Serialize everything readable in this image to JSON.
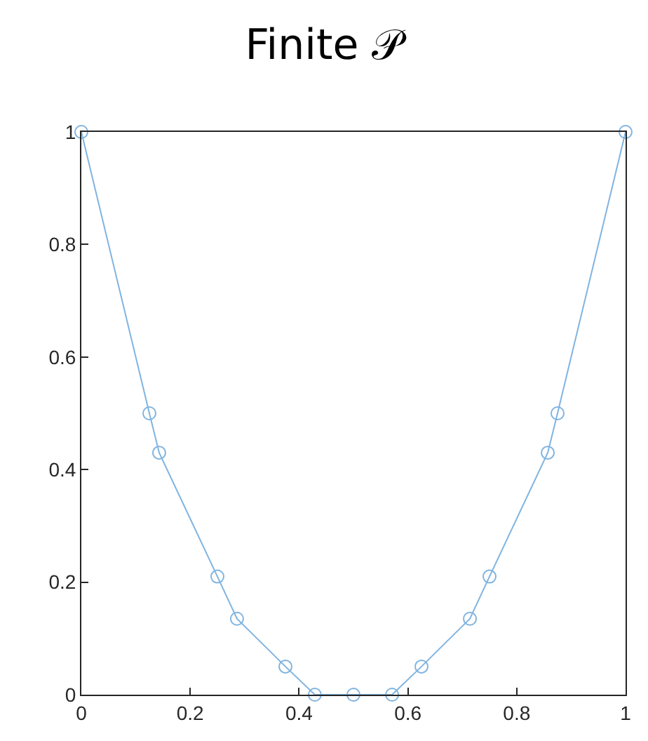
{
  "chart_data": {
    "type": "line",
    "title": "Finite 𝒫",
    "x": [
      0,
      0.125,
      0.143,
      0.25,
      0.286,
      0.375,
      0.429,
      0.5,
      0.571,
      0.625,
      0.714,
      0.75,
      0.857,
      0.875,
      1
    ],
    "series": [
      {
        "color": "#80b4e0",
        "values": [
          1,
          0.5,
          0.43,
          0.21,
          0.135,
          0.05,
          0,
          0,
          0,
          0.05,
          0.135,
          0.21,
          0.43,
          0.5,
          1
        ]
      }
    ],
    "xlim": [
      0,
      1
    ],
    "xticks": [
      0,
      0.2,
      0.4,
      0.6,
      0.8,
      1
    ],
    "ylim": [
      0,
      1
    ],
    "yticks": [
      0,
      0.2,
      0.4,
      0.6,
      0.8,
      1
    ],
    "legend": false,
    "marker": "circle",
    "line_style": "solid"
  }
}
